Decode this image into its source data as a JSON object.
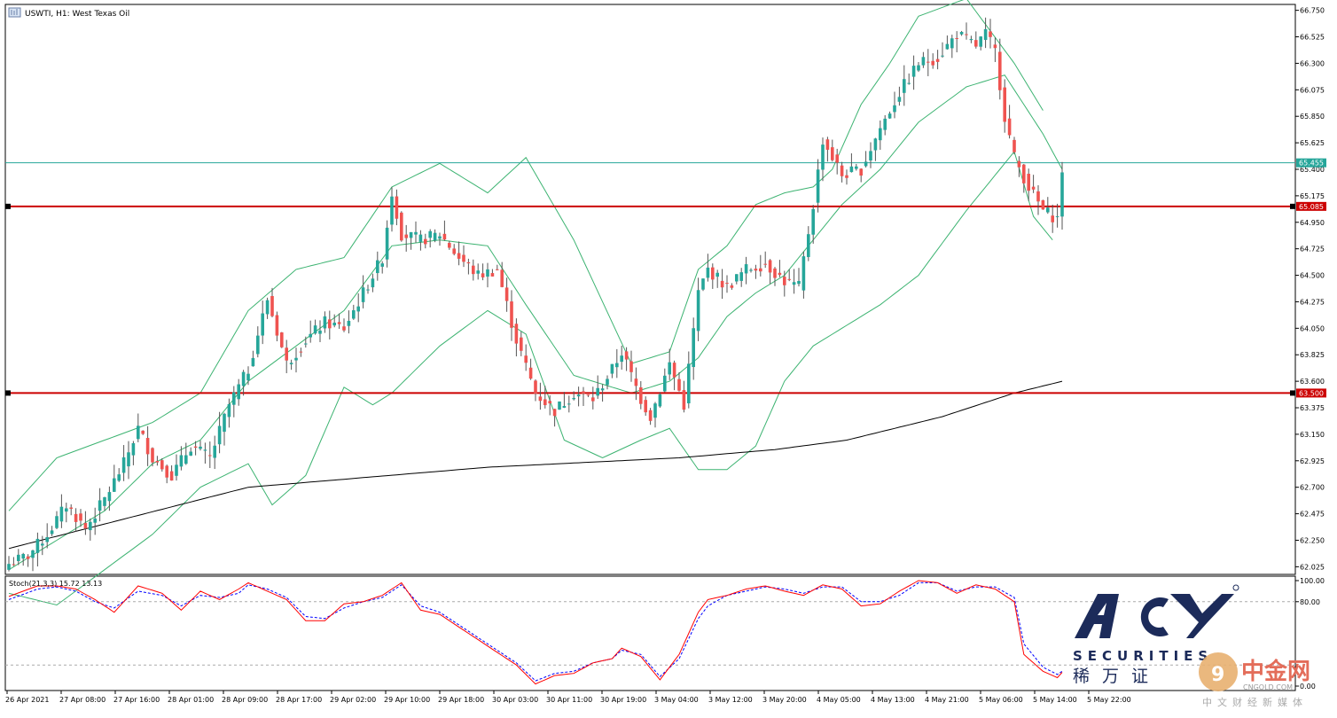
{
  "header": {
    "symbol_line": "USWTI, H1:  West Texas Oil",
    "osc_line": "Stoch(21,3,3) 15.72 13.13"
  },
  "colors": {
    "bull": "#26a69a",
    "bear": "#ef5350",
    "band": "#3cb371",
    "ma": "#000000",
    "level": "#cc0000",
    "current": "#26a69a",
    "stoch_main": "#ff0000",
    "stoch_signal": "#0000ff"
  },
  "branding": {
    "logo_text": "ACY",
    "securities": "SECURITIES",
    "cn_text": "稀万证",
    "cngold_text": "中金网",
    "cngold_domain": "CNGOLD.COM",
    "cngold_sub": "中文财经新媒体"
  },
  "chart_data": [
    {
      "type": "candlestick",
      "symbol": "USWTI",
      "timeframe": "H1",
      "ylim": [
        61.96,
        66.8
      ],
      "y_ticks": [
        "66.750",
        "66.525",
        "66.300",
        "66.075",
        "65.850",
        "65.625",
        "65.400",
        "65.175",
        "64.950",
        "64.725",
        "64.500",
        "64.275",
        "64.050",
        "63.825",
        "63.600",
        "63.375",
        "63.150",
        "62.925",
        "62.700",
        "62.475",
        "62.250",
        "62.025"
      ],
      "x_labels": [
        "26 Apr 2021",
        "27 Apr 08:00",
        "27 Apr 16:00",
        "28 Apr 01:00",
        "28 Apr 09:00",
        "28 Apr 17:00",
        "29 Apr 02:00",
        "29 Apr 10:00",
        "29 Apr 18:00",
        "30 Apr 03:00",
        "30 Apr 11:00",
        "30 Apr 19:00",
        "3 May 04:00",
        "3 May 12:00",
        "3 May 20:00",
        "4 May 05:00",
        "4 May 13:00",
        "4 May 21:00",
        "5 May 06:00",
        "5 May 14:00",
        "5 May 22:00"
      ],
      "horizontal_levels": [
        {
          "label": "65.085",
          "value": 65.085
        },
        {
          "label": "63.500",
          "value": 63.5
        }
      ],
      "current_price": {
        "label": "65.455",
        "value": 65.455
      },
      "close_anchors": [
        [
          0,
          62.05
        ],
        [
          4,
          62.12
        ],
        [
          8,
          62.3
        ],
        [
          12,
          62.55
        ],
        [
          16,
          62.35
        ],
        [
          20,
          62.6
        ],
        [
          24,
          62.9
        ],
        [
          27,
          63.2
        ],
        [
          30,
          62.95
        ],
        [
          34,
          62.8
        ],
        [
          38,
          63.05
        ],
        [
          42,
          62.95
        ],
        [
          46,
          63.4
        ],
        [
          50,
          63.7
        ],
        [
          54,
          64.3
        ],
        [
          58,
          63.75
        ],
        [
          62,
          63.95
        ],
        [
          66,
          64.1
        ],
        [
          70,
          64.05
        ],
        [
          74,
          64.35
        ],
        [
          78,
          64.65
        ],
        [
          80,
          65.2
        ],
        [
          82,
          64.85
        ],
        [
          86,
          64.8
        ],
        [
          90,
          64.85
        ],
        [
          94,
          64.65
        ],
        [
          98,
          64.5
        ],
        [
          102,
          64.55
        ],
        [
          106,
          63.95
        ],
        [
          110,
          63.5
        ],
        [
          114,
          63.35
        ],
        [
          118,
          63.5
        ],
        [
          122,
          63.45
        ],
        [
          126,
          63.7
        ],
        [
          128,
          63.85
        ],
        [
          132,
          63.45
        ],
        [
          134,
          63.3
        ],
        [
          138,
          63.75
        ],
        [
          141,
          63.4
        ],
        [
          144,
          64.35
        ],
        [
          146,
          64.55
        ],
        [
          150,
          64.4
        ],
        [
          154,
          64.55
        ],
        [
          158,
          64.6
        ],
        [
          162,
          64.45
        ],
        [
          165,
          64.4
        ],
        [
          168,
          65.1
        ],
        [
          170,
          65.65
        ],
        [
          174,
          65.35
        ],
        [
          178,
          65.4
        ],
        [
          182,
          65.75
        ],
        [
          186,
          66.05
        ],
        [
          190,
          66.3
        ],
        [
          194,
          66.35
        ],
        [
          198,
          66.55
        ],
        [
          202,
          66.45
        ],
        [
          204,
          66.55
        ],
        [
          206,
          66.4
        ],
        [
          208,
          65.85
        ],
        [
          210,
          65.5
        ],
        [
          213,
          65.25
        ],
        [
          216,
          65.05
        ],
        [
          219,
          64.98
        ],
        [
          220,
          65.4
        ]
      ],
      "ma_anchors": [
        [
          0,
          62.18
        ],
        [
          50,
          62.7
        ],
        [
          100,
          62.87
        ],
        [
          140,
          62.95
        ],
        [
          160,
          63.02
        ],
        [
          175,
          63.1
        ],
        [
          195,
          63.3
        ],
        [
          210,
          63.5
        ],
        [
          220,
          63.6
        ]
      ],
      "bb_upper_anchors": [
        [
          0,
          62.5
        ],
        [
          10,
          62.95
        ],
        [
          20,
          63.1
        ],
        [
          30,
          63.25
        ],
        [
          40,
          63.5
        ],
        [
          50,
          64.2
        ],
        [
          60,
          64.55
        ],
        [
          70,
          64.65
        ],
        [
          80,
          65.25
        ],
        [
          90,
          65.45
        ],
        [
          100,
          65.2
        ],
        [
          108,
          65.5
        ],
        [
          118,
          64.8
        ],
        [
          130,
          63.75
        ],
        [
          138,
          63.85
        ],
        [
          144,
          64.55
        ],
        [
          150,
          64.75
        ],
        [
          156,
          65.1
        ],
        [
          162,
          65.2
        ],
        [
          168,
          65.25
        ],
        [
          172,
          65.4
        ],
        [
          178,
          65.95
        ],
        [
          184,
          66.3
        ],
        [
          190,
          66.7
        ],
        [
          200,
          66.85
        ],
        [
          210,
          66.3
        ],
        [
          216,
          65.9
        ]
      ],
      "bb_mid_anchors": [
        [
          0,
          62.0
        ],
        [
          10,
          62.25
        ],
        [
          20,
          62.5
        ],
        [
          30,
          62.9
        ],
        [
          40,
          63.1
        ],
        [
          50,
          63.6
        ],
        [
          60,
          63.9
        ],
        [
          70,
          64.2
        ],
        [
          80,
          64.75
        ],
        [
          90,
          64.8
        ],
        [
          100,
          64.75
        ],
        [
          108,
          64.25
        ],
        [
          118,
          63.65
        ],
        [
          130,
          63.5
        ],
        [
          138,
          63.6
        ],
        [
          144,
          63.8
        ],
        [
          150,
          64.15
        ],
        [
          156,
          64.35
        ],
        [
          162,
          64.5
        ],
        [
          168,
          64.8
        ],
        [
          174,
          65.1
        ],
        [
          182,
          65.4
        ],
        [
          190,
          65.8
        ],
        [
          200,
          66.1
        ],
        [
          208,
          66.2
        ],
        [
          216,
          65.7
        ],
        [
          220,
          65.4
        ]
      ],
      "bb_lower_anchors": [
        [
          0,
          61.8
        ],
        [
          10,
          61.7
        ],
        [
          20,
          62.0
        ],
        [
          30,
          62.3
        ],
        [
          40,
          62.7
        ],
        [
          50,
          62.9
        ],
        [
          55,
          62.55
        ],
        [
          62,
          62.8
        ],
        [
          70,
          63.55
        ],
        [
          76,
          63.4
        ],
        [
          80,
          63.5
        ],
        [
          90,
          63.9
        ],
        [
          100,
          64.2
        ],
        [
          108,
          64.0
        ],
        [
          116,
          63.1
        ],
        [
          124,
          62.95
        ],
        [
          132,
          63.1
        ],
        [
          138,
          63.2
        ],
        [
          144,
          62.85
        ],
        [
          150,
          62.85
        ],
        [
          156,
          63.05
        ],
        [
          162,
          63.6
        ],
        [
          168,
          63.9
        ],
        [
          174,
          64.05
        ],
        [
          182,
          64.25
        ],
        [
          190,
          64.5
        ],
        [
          200,
          65.05
        ],
        [
          206,
          65.35
        ],
        [
          210,
          65.55
        ],
        [
          214,
          65.0
        ],
        [
          218,
          64.8
        ]
      ]
    },
    {
      "type": "line",
      "name": "Stoch(21,3,3) 15.72 13.13",
      "ylim": [
        0,
        100
      ],
      "y_ticks": [
        "100.00",
        "80.00",
        "0.00"
      ],
      "levels": [
        80,
        20
      ],
      "main_anchors": [
        [
          0,
          85
        ],
        [
          6,
          95
        ],
        [
          10,
          95
        ],
        [
          14,
          92
        ],
        [
          18,
          82
        ],
        [
          22,
          70
        ],
        [
          27,
          95
        ],
        [
          32,
          88
        ],
        [
          36,
          72
        ],
        [
          40,
          90
        ],
        [
          44,
          82
        ],
        [
          48,
          92
        ],
        [
          50,
          98
        ],
        [
          54,
          90
        ],
        [
          58,
          82
        ],
        [
          62,
          62
        ],
        [
          66,
          62
        ],
        [
          70,
          78
        ],
        [
          74,
          80
        ],
        [
          78,
          86
        ],
        [
          82,
          98
        ],
        [
          86,
          72
        ],
        [
          90,
          68
        ],
        [
          94,
          56
        ],
        [
          98,
          44
        ],
        [
          102,
          32
        ],
        [
          106,
          20
        ],
        [
          110,
          2
        ],
        [
          114,
          10
        ],
        [
          118,
          12
        ],
        [
          122,
          22
        ],
        [
          126,
          26
        ],
        [
          128,
          36
        ],
        [
          132,
          28
        ],
        [
          136,
          6
        ],
        [
          140,
          30
        ],
        [
          144,
          70
        ],
        [
          146,
          82
        ],
        [
          150,
          86
        ],
        [
          154,
          92
        ],
        [
          158,
          95
        ],
        [
          162,
          90
        ],
        [
          166,
          86
        ],
        [
          170,
          96
        ],
        [
          174,
          92
        ],
        [
          178,
          76
        ],
        [
          182,
          78
        ],
        [
          186,
          90
        ],
        [
          190,
          100
        ],
        [
          194,
          98
        ],
        [
          198,
          88
        ],
        [
          202,
          96
        ],
        [
          206,
          92
        ],
        [
          210,
          80
        ],
        [
          212,
          30
        ],
        [
          216,
          14
        ],
        [
          219,
          8
        ],
        [
          220,
          13
        ]
      ],
      "signal_anchors": [
        [
          0,
          82
        ],
        [
          6,
          92
        ],
        [
          10,
          94
        ],
        [
          14,
          90
        ],
        [
          18,
          80
        ],
        [
          22,
          74
        ],
        [
          27,
          90
        ],
        [
          32,
          86
        ],
        [
          36,
          76
        ],
        [
          40,
          86
        ],
        [
          44,
          84
        ],
        [
          48,
          88
        ],
        [
          50,
          96
        ],
        [
          54,
          92
        ],
        [
          58,
          84
        ],
        [
          62,
          66
        ],
        [
          66,
          64
        ],
        [
          70,
          74
        ],
        [
          74,
          80
        ],
        [
          78,
          84
        ],
        [
          82,
          96
        ],
        [
          86,
          76
        ],
        [
          90,
          70
        ],
        [
          94,
          58
        ],
        [
          98,
          46
        ],
        [
          102,
          34
        ],
        [
          106,
          22
        ],
        [
          110,
          5
        ],
        [
          114,
          12
        ],
        [
          118,
          14
        ],
        [
          122,
          22
        ],
        [
          126,
          26
        ],
        [
          128,
          34
        ],
        [
          132,
          30
        ],
        [
          136,
          9
        ],
        [
          140,
          26
        ],
        [
          144,
          64
        ],
        [
          146,
          76
        ],
        [
          150,
          86
        ],
        [
          154,
          90
        ],
        [
          158,
          94
        ],
        [
          162,
          92
        ],
        [
          166,
          88
        ],
        [
          170,
          94
        ],
        [
          174,
          94
        ],
        [
          178,
          80
        ],
        [
          182,
          80
        ],
        [
          186,
          86
        ],
        [
          190,
          98
        ],
        [
          194,
          98
        ],
        [
          198,
          90
        ],
        [
          202,
          94
        ],
        [
          206,
          94
        ],
        [
          210,
          84
        ],
        [
          212,
          40
        ],
        [
          216,
          18
        ],
        [
          219,
          11
        ],
        [
          220,
          14
        ]
      ]
    }
  ]
}
